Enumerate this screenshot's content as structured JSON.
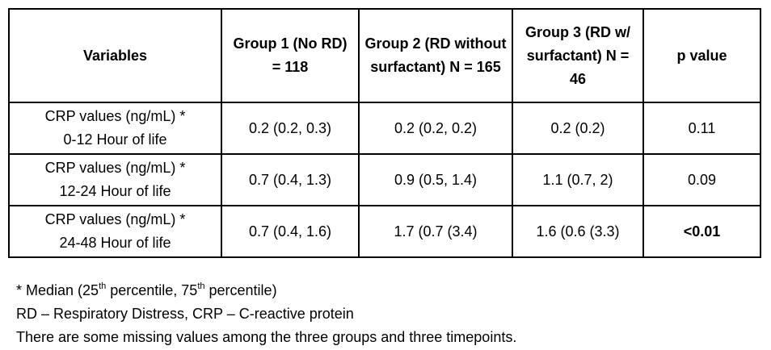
{
  "table": {
    "headers": [
      "Variables",
      "Group 1 (No RD) = 118",
      "Group 2 (RD without surfactant) N = 165",
      "Group 3 (RD w/ surfactant) N = 46",
      "p value"
    ],
    "rows": [
      {
        "variable_line1": "CRP values (ng/mL) *",
        "variable_line2": "0-12 Hour of life",
        "group1": "0.2 (0.2, 0.3)",
        "group2": "0.2 (0.2, 0.2)",
        "group3": "0.2 (0.2)",
        "p_value": "0.11"
      },
      {
        "variable_line1": "CRP values (ng/mL) *",
        "variable_line2": "12-24 Hour of life",
        "group1": "0.7 (0.4, 1.3)",
        "group2": "0.9 (0.5, 1.4)",
        "group3": "1.1 (0.7, 2)",
        "p_value": "0.09"
      },
      {
        "variable_line1": "CRP values (ng/mL) *",
        "variable_line2": "24-48 Hour of life",
        "group1": "0.7 (0.4, 1.6)",
        "group2": "1.7 (0.7 (3.4)",
        "group3": "1.6 (0.6 (3.3)",
        "p_value": "<0.01"
      }
    ]
  },
  "notes": {
    "line1_prefix": "* Median (25",
    "line1_sup1": "th",
    "line1_middle": " percentile, 75",
    "line1_sup2": "th",
    "line1_suffix": " percentile)",
    "line2": "RD – Respiratory Distress, CRP – C-reactive protein",
    "line3": "There are some missing values among the three groups and three timepoints."
  }
}
